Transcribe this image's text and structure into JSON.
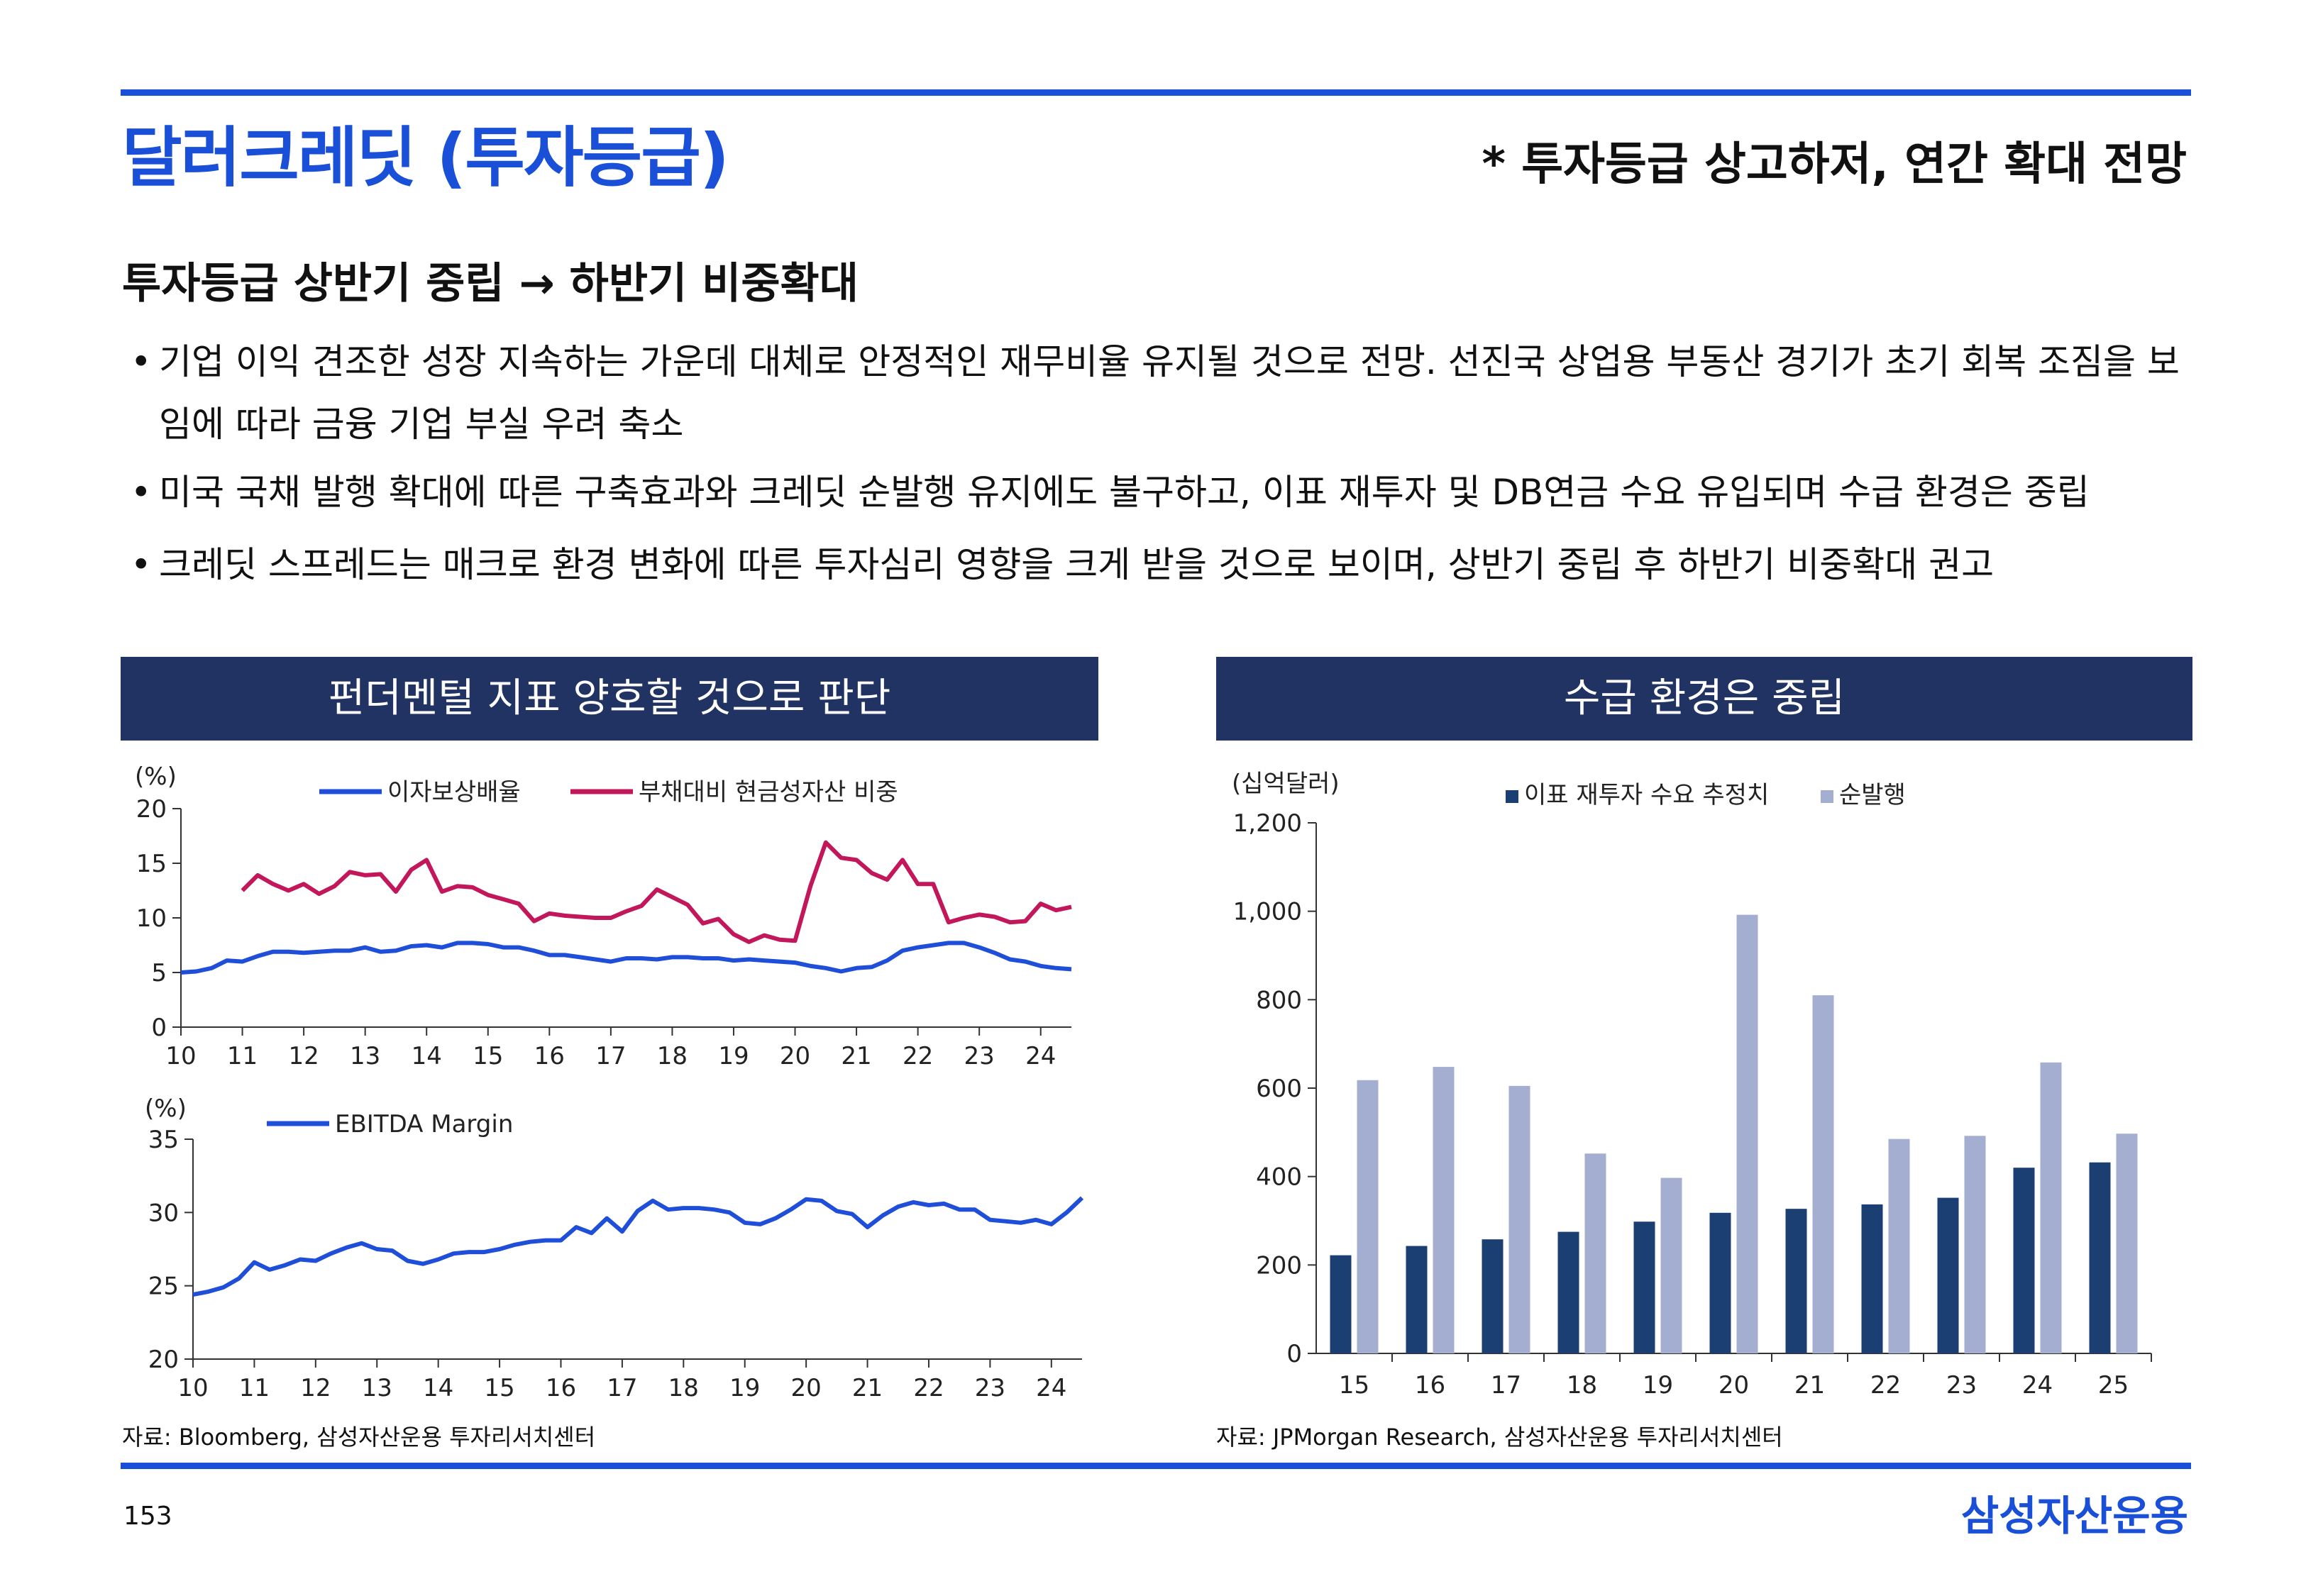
{
  "title": "달러크레딧 (투자등급)",
  "title_note": "* 투자등급 상고하저, 연간 확대 전망",
  "section_heading": "투자등급 상반기 중립 → 하반기 비중확대",
  "bullets": [
    "기업 이익 견조한 성장 지속하는 가운데 대체로 안정적인 재무비율 유지될 것으로 전망. 선진국 상업용 부동산 경기가 초기 회복 조짐을 보임에 따라 금융 기업 부실 우려 축소",
    "미국 국채 발행 확대에 따른 구축효과와 크레딧 순발행 유지에도 불구하고, 이표 재투자 및 DB연금 수요 유입되며 수급 환경은 중립",
    "크레딧 스프레드는 매크로 환경 변화에 따른 투자심리 영향을 크게 받을 것으로 보이며, 상반기 중립 후 하반기 비중확대 권고"
  ],
  "bullet_symbol": "•",
  "left_panel": {
    "header": "펀더멘털 지표 양호할 것으로 판단",
    "source": "자료: Bloomberg, 삼성자산운용 투자리서치센터"
  },
  "right_panel": {
    "header": "수급 환경은 중립",
    "source": "자료: JPMorgan Research, 삼성자산운용 투자리서치센터"
  },
  "page_number": "153",
  "company": "삼성자산운용",
  "colors": {
    "brand_blue": "#1a4fd8",
    "header_navy": "#213363",
    "series_blue": "#1f4fd8",
    "series_magenta": "#c2185b",
    "bar_dark": "#1b3f73",
    "bar_light": "#a3aed0"
  },
  "chart_data": [
    {
      "id": "coverage",
      "type": "line",
      "unit_label": "(%)",
      "ylim": [
        0,
        20
      ],
      "yticks": [
        "0",
        "5",
        "10",
        "15",
        "20"
      ],
      "xlim": [
        10,
        24.5
      ],
      "xticks": [
        "10",
        "11",
        "12",
        "13",
        "14",
        "15",
        "16",
        "17",
        "18",
        "19",
        "20",
        "21",
        "22",
        "23",
        "24"
      ],
      "series": [
        {
          "name": "이자보상배율",
          "x": [
            10,
            10.25,
            10.5,
            10.75,
            11,
            11.25,
            11.5,
            11.75,
            12,
            12.25,
            12.5,
            12.75,
            13,
            13.25,
            13.5,
            13.75,
            14,
            14.25,
            14.5,
            14.75,
            15,
            15.25,
            15.5,
            15.75,
            16,
            16.25,
            16.5,
            16.75,
            17,
            17.25,
            17.5,
            17.75,
            18,
            18.25,
            18.5,
            18.75,
            19,
            19.25,
            19.5,
            19.75,
            20,
            20.25,
            20.5,
            20.75,
            21,
            21.25,
            21.5,
            21.75,
            22,
            22.25,
            22.5,
            22.75,
            23,
            23.25,
            23.5,
            23.75,
            24,
            24.25,
            24.5
          ],
          "values": [
            5.0,
            5.1,
            5.4,
            6.1,
            6.0,
            6.5,
            6.9,
            6.9,
            6.8,
            6.9,
            7.0,
            7.0,
            7.3,
            6.9,
            7.0,
            7.4,
            7.5,
            7.3,
            7.7,
            7.7,
            7.6,
            7.3,
            7.3,
            7.0,
            6.6,
            6.6,
            6.4,
            6.2,
            6.0,
            6.3,
            6.3,
            6.2,
            6.4,
            6.4,
            6.3,
            6.3,
            6.1,
            6.2,
            6.1,
            6.0,
            5.9,
            5.6,
            5.4,
            5.1,
            5.4,
            5.5,
            6.1,
            7.0,
            7.3,
            7.5,
            7.7,
            7.7,
            7.3,
            6.8,
            6.2,
            6.0,
            5.6,
            5.4,
            5.3
          ]
        },
        {
          "name": "부채대비 현금성자산 비중",
          "x": [
            11,
            11.25,
            11.5,
            11.75,
            12,
            12.25,
            12.5,
            12.75,
            13,
            13.25,
            13.5,
            13.75,
            14,
            14.25,
            14.5,
            14.75,
            15,
            15.25,
            15.5,
            15.75,
            16,
            16.25,
            16.5,
            16.75,
            17,
            17.25,
            17.5,
            17.75,
            18,
            18.25,
            18.5,
            18.75,
            19,
            19.25,
            19.5,
            19.75,
            20,
            20.25,
            20.5,
            20.75,
            21,
            21.25,
            21.5,
            21.75,
            22,
            22.25,
            22.5,
            22.75,
            23,
            23.25,
            23.5,
            23.75,
            24,
            24.25,
            24.5
          ],
          "values": [
            12.5,
            13.9,
            13.1,
            12.5,
            13.1,
            12.2,
            12.9,
            14.2,
            13.9,
            14.0,
            12.4,
            14.4,
            15.3,
            12.4,
            12.9,
            12.8,
            12.1,
            11.7,
            11.3,
            9.7,
            10.4,
            10.2,
            10.1,
            10.0,
            10.0,
            10.6,
            11.1,
            12.6,
            11.9,
            11.2,
            9.5,
            9.9,
            8.5,
            7.8,
            8.4,
            8.0,
            7.9,
            12.9,
            16.9,
            15.5,
            15.3,
            14.1,
            13.5,
            15.3,
            13.1,
            13.1,
            9.6,
            10.0,
            10.3,
            10.1,
            9.6,
            9.7,
            11.3,
            10.7,
            11.0
          ]
        }
      ]
    },
    {
      "id": "ebitda",
      "type": "line",
      "unit_label": "(%)",
      "ylim": [
        20,
        35
      ],
      "yticks": [
        "20",
        "25",
        "30",
        "35"
      ],
      "xlim": [
        10,
        24.5
      ],
      "xticks": [
        "10",
        "11",
        "12",
        "13",
        "14",
        "15",
        "16",
        "17",
        "18",
        "19",
        "20",
        "21",
        "22",
        "23",
        "24"
      ],
      "series": [
        {
          "name": "EBITDA Margin",
          "x": [
            10,
            10.25,
            10.5,
            10.75,
            11,
            11.25,
            11.5,
            11.75,
            12,
            12.25,
            12.5,
            12.75,
            13,
            13.25,
            13.5,
            13.75,
            14,
            14.25,
            14.5,
            14.75,
            15,
            15.25,
            15.5,
            15.75,
            16,
            16.25,
            16.5,
            16.75,
            17,
            17.25,
            17.5,
            17.75,
            18,
            18.25,
            18.5,
            18.75,
            19,
            19.25,
            19.5,
            19.75,
            20,
            20.25,
            20.5,
            20.75,
            21,
            21.25,
            21.5,
            21.75,
            22,
            22.25,
            22.5,
            22.75,
            23,
            23.25,
            23.5,
            23.75,
            24,
            24.25,
            24.5
          ],
          "values": [
            24.4,
            24.6,
            24.9,
            25.5,
            26.6,
            26.1,
            26.4,
            26.8,
            26.7,
            27.2,
            27.6,
            27.9,
            27.5,
            27.4,
            26.7,
            26.5,
            26.8,
            27.2,
            27.3,
            27.3,
            27.5,
            27.8,
            28.0,
            28.1,
            28.1,
            29.0,
            28.6,
            29.6,
            28.7,
            30.1,
            30.8,
            30.2,
            30.3,
            30.3,
            30.2,
            30.0,
            29.3,
            29.2,
            29.6,
            30.2,
            30.9,
            30.8,
            30.1,
            29.9,
            29.0,
            29.8,
            30.4,
            30.7,
            30.5,
            30.6,
            30.2,
            30.2,
            29.5,
            29.4,
            29.3,
            29.5,
            29.2,
            30.0,
            31.0
          ]
        }
      ]
    },
    {
      "id": "supply",
      "type": "bar",
      "unit_label": "(십억달러)",
      "ylim": [
        0,
        1200
      ],
      "yticks": [
        "0",
        "200",
        "400",
        "600",
        "800",
        "1,000",
        "1,200"
      ],
      "categories": [
        "15",
        "16",
        "17",
        "18",
        "19",
        "20",
        "21",
        "22",
        "23",
        "24",
        "25"
      ],
      "series": [
        {
          "name": "이표 재투자 수요 추정치",
          "values": [
            222,
            243,
            258,
            275,
            298,
            318,
            327,
            337,
            352,
            420,
            432
          ]
        },
        {
          "name": "순발행",
          "values": [
            618,
            648,
            605,
            452,
            397,
            992,
            810,
            485,
            492,
            658,
            497
          ]
        }
      ]
    }
  ]
}
